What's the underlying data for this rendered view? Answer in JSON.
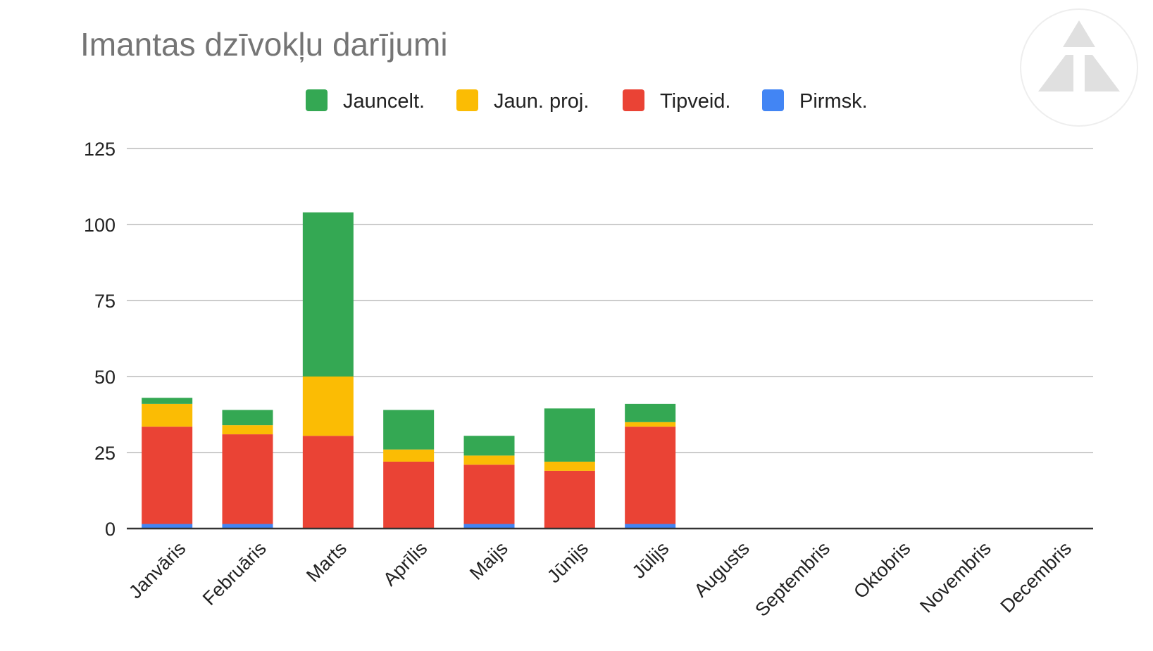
{
  "chart_data": {
    "type": "bar",
    "stacked": true,
    "title": "Imantas dzīvokļu darījumi",
    "xlabel": "",
    "ylabel": "",
    "ylim": [
      0,
      125
    ],
    "yticks": [
      "0",
      "25",
      "50",
      "75",
      "100",
      "125"
    ],
    "grid": true,
    "legend_position": "top",
    "categories": [
      "Janvāris",
      "Februāris",
      "Marts",
      "Aprīlis",
      "Maijs",
      "Jūnijs",
      "Jūlijs",
      "Augusts",
      "Septembris",
      "Oktobris",
      "Novembris",
      "Decembris"
    ],
    "series": [
      {
        "name": "Pirmsk.",
        "color": "#4285F4",
        "values": [
          1.5,
          1.5,
          0,
          0,
          1.5,
          0,
          1.5,
          0,
          0,
          0,
          0,
          0
        ]
      },
      {
        "name": "Tipveid.",
        "color": "#EA4335",
        "values": [
          32,
          29.5,
          30.5,
          22,
          19.5,
          19,
          32,
          0,
          0,
          0,
          0,
          0
        ]
      },
      {
        "name": "Jaun. proj.",
        "color": "#FBBC04",
        "values": [
          7.5,
          3,
          19.5,
          4,
          3,
          3,
          1.5,
          0,
          0,
          0,
          0,
          0
        ]
      },
      {
        "name": "Jauncelt.",
        "color": "#34A853",
        "values": [
          2,
          5,
          54,
          13,
          6.5,
          17.5,
          6,
          0,
          0,
          0,
          0,
          0
        ]
      }
    ],
    "legend_order": [
      "Jauncelt.",
      "Jaun. proj.",
      "Tipveid.",
      "Pirmsk."
    ]
  },
  "logo": {
    "name": "triangle-logo-icon",
    "color": "#e0e0e0"
  }
}
